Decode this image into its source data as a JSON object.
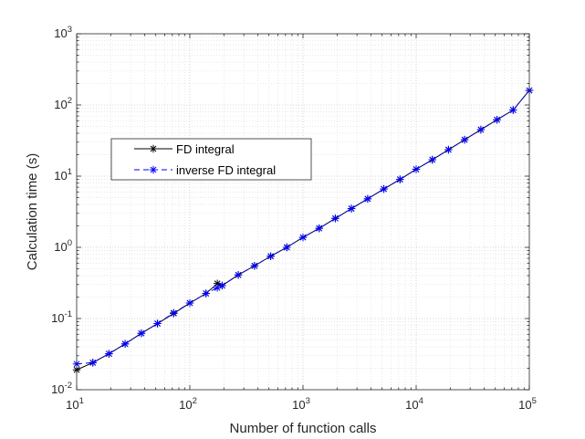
{
  "chart_data": {
    "type": "line",
    "title": "",
    "xlabel": "Number of function calls",
    "ylabel": "Calculation time (s)",
    "xscale": "log",
    "yscale": "log",
    "xlim": [
      10,
      100000
    ],
    "ylim": [
      0.01,
      1000
    ],
    "grid": "major and minor, dotted",
    "legend_position": "upper-left",
    "x_ticks": [
      {
        "value": 10,
        "base": "10",
        "exp": "1"
      },
      {
        "value": 100,
        "base": "10",
        "exp": "2"
      },
      {
        "value": 1000,
        "base": "10",
        "exp": "3"
      },
      {
        "value": 10000,
        "base": "10",
        "exp": "4"
      },
      {
        "value": 100000,
        "base": "10",
        "exp": "5"
      }
    ],
    "y_ticks": [
      {
        "value": 0.01,
        "base": "10",
        "exp": "-2"
      },
      {
        "value": 0.1,
        "base": "10",
        "exp": "-1"
      },
      {
        "value": 1,
        "base": "10",
        "exp": "0"
      },
      {
        "value": 10,
        "base": "10",
        "exp": "1"
      },
      {
        "value": 100,
        "base": "10",
        "exp": "2"
      },
      {
        "value": 1000,
        "base": "10",
        "exp": "3"
      }
    ],
    "series": [
      {
        "name": "FD integral",
        "color": "#000000",
        "marker": "asterisk",
        "x": [
          10,
          13.9,
          19.3,
          26.8,
          37.3,
          51.8,
          72.0,
          100,
          139,
          175,
          193,
          268,
          373,
          518,
          720,
          1000,
          1390,
          1930,
          2680,
          3730,
          5180,
          7200,
          10000,
          13900,
          19300,
          26800,
          37300,
          51800,
          72000,
          100000
        ],
        "y": [
          0.019,
          0.024,
          0.032,
          0.044,
          0.062,
          0.085,
          0.118,
          0.165,
          0.225,
          0.31,
          0.29,
          0.41,
          0.55,
          0.75,
          1.0,
          1.38,
          1.85,
          2.55,
          3.5,
          4.8,
          6.6,
          9.0,
          12.5,
          17.0,
          23.5,
          32.5,
          45,
          62,
          85,
          160
        ]
      },
      {
        "name": "inverse FD integral",
        "color": "#0000ff",
        "marker": "asterisk",
        "x": [
          10,
          13.9,
          19.3,
          26.8,
          37.3,
          51.8,
          72.0,
          100,
          139,
          175,
          193,
          268,
          373,
          518,
          720,
          1000,
          1390,
          1930,
          2680,
          3730,
          5180,
          7200,
          10000,
          13900,
          19300,
          26800,
          37300,
          51800,
          72000,
          100000
        ],
        "y": [
          0.023,
          0.024,
          0.032,
          0.044,
          0.062,
          0.085,
          0.12,
          0.165,
          0.225,
          0.27,
          0.29,
          0.41,
          0.55,
          0.75,
          1.0,
          1.38,
          1.85,
          2.55,
          3.5,
          4.8,
          6.6,
          9.0,
          12.5,
          17.0,
          23.5,
          32.5,
          45,
          62,
          85,
          160
        ]
      }
    ]
  }
}
